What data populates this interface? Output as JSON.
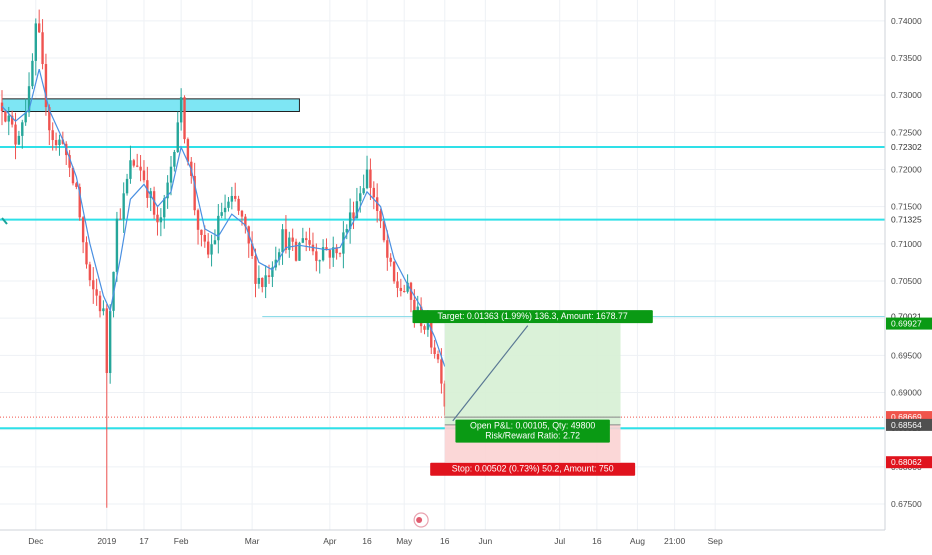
{
  "chart_data": {
    "type": "candlestick",
    "title": "",
    "ylim": [
      0.6715,
      0.7428
    ],
    "xlim_index": [
      0,
      276
    ],
    "x_ticks": [
      {
        "i": 10,
        "label": "Dec"
      },
      {
        "i": 31,
        "label": "2019"
      },
      {
        "i": 42,
        "label": "17"
      },
      {
        "i": 53,
        "label": "Feb"
      },
      {
        "i": 74,
        "label": "Mar"
      },
      {
        "i": 97,
        "label": "Apr"
      },
      {
        "i": 108,
        "label": "16"
      },
      {
        "i": 119,
        "label": "May"
      },
      {
        "i": 131,
        "label": "16"
      },
      {
        "i": 143,
        "label": "Jun"
      },
      {
        "i": 165,
        "label": "Jul"
      },
      {
        "i": 176,
        "label": "16"
      },
      {
        "i": 188,
        "label": "Aug"
      },
      {
        "i": 199,
        "label": "21:00"
      },
      {
        "i": 211,
        "label": "Sep"
      }
    ],
    "y_ticks": [
      "0.74000",
      "0.73500",
      "0.73000",
      "0.72500",
      "0.72000",
      "0.71500",
      "0.71000",
      "0.70500",
      "0.70000",
      "0.69500",
      "0.69000",
      "0.68500",
      "0.68000",
      "0.67500"
    ],
    "price_path": [
      [
        0,
        0.729
      ],
      [
        2,
        0.7265
      ],
      [
        4,
        0.724
      ],
      [
        6,
        0.727
      ],
      [
        8,
        0.73
      ],
      [
        10,
        0.7385
      ],
      [
        11,
        0.7372
      ],
      [
        12,
        0.733
      ],
      [
        14,
        0.726
      ],
      [
        16,
        0.723
      ],
      [
        18,
        0.7245
      ],
      [
        20,
        0.719
      ],
      [
        22,
        0.7175
      ],
      [
        24,
        0.71
      ],
      [
        26,
        0.704
      ],
      [
        28,
        0.703
      ],
      [
        30,
        0.7005
      ],
      [
        31,
        0.693
      ],
      [
        32,
        0.702
      ],
      [
        34,
        0.713
      ],
      [
        36,
        0.716
      ],
      [
        38,
        0.7205
      ],
      [
        40,
        0.721
      ],
      [
        42,
        0.719
      ],
      [
        44,
        0.716
      ],
      [
        46,
        0.712
      ],
      [
        48,
        0.715
      ],
      [
        50,
        0.7205
      ],
      [
        52,
        0.727
      ],
      [
        53,
        0.7285
      ],
      [
        55,
        0.722
      ],
      [
        57,
        0.715
      ],
      [
        59,
        0.71
      ],
      [
        61,
        0.7085
      ],
      [
        63,
        0.711
      ],
      [
        65,
        0.7145
      ],
      [
        67,
        0.715
      ],
      [
        69,
        0.7155
      ],
      [
        71,
        0.713
      ],
      [
        73,
        0.7095
      ],
      [
        75,
        0.706
      ],
      [
        77,
        0.7048
      ],
      [
        79,
        0.7065
      ],
      [
        81,
        0.709
      ],
      [
        83,
        0.711
      ],
      [
        85,
        0.71
      ],
      [
        87,
        0.708
      ],
      [
        89,
        0.7115
      ],
      [
        91,
        0.71
      ],
      [
        93,
        0.7085
      ],
      [
        95,
        0.7095
      ],
      [
        97,
        0.709
      ],
      [
        99,
        0.7085
      ],
      [
        101,
        0.711
      ],
      [
        103,
        0.7135
      ],
      [
        105,
        0.716
      ],
      [
        107,
        0.7185
      ],
      [
        108,
        0.7195
      ],
      [
        110,
        0.7165
      ],
      [
        112,
        0.712
      ],
      [
        114,
        0.708
      ],
      [
        116,
        0.7045
      ],
      [
        118,
        0.704
      ],
      [
        120,
        0.7035
      ],
      [
        122,
        0.701
      ],
      [
        124,
        0.7
      ],
      [
        126,
        0.698
      ],
      [
        128,
        0.696
      ],
      [
        130,
        0.6925
      ],
      [
        131,
        0.6887
      ]
    ],
    "ma_path": [
      [
        0,
        0.7285
      ],
      [
        4,
        0.7265
      ],
      [
        8,
        0.728
      ],
      [
        11,
        0.7335
      ],
      [
        14,
        0.728
      ],
      [
        18,
        0.724
      ],
      [
        22,
        0.719
      ],
      [
        26,
        0.71
      ],
      [
        30,
        0.703
      ],
      [
        32,
        0.701
      ],
      [
        35,
        0.708
      ],
      [
        38,
        0.716
      ],
      [
        42,
        0.718
      ],
      [
        46,
        0.715
      ],
      [
        50,
        0.717
      ],
      [
        53,
        0.723
      ],
      [
        56,
        0.72
      ],
      [
        60,
        0.712
      ],
      [
        64,
        0.711
      ],
      [
        68,
        0.714
      ],
      [
        72,
        0.7125
      ],
      [
        76,
        0.7075
      ],
      [
        80,
        0.7065
      ],
      [
        84,
        0.7095
      ],
      [
        88,
        0.7098
      ],
      [
        92,
        0.7095
      ],
      [
        96,
        0.7092
      ],
      [
        100,
        0.7095
      ],
      [
        104,
        0.713
      ],
      [
        108,
        0.717
      ],
      [
        112,
        0.715
      ],
      [
        116,
        0.708
      ],
      [
        120,
        0.7045
      ],
      [
        124,
        0.7015
      ],
      [
        128,
        0.6975
      ],
      [
        131,
        0.6935
      ]
    ],
    "spike_down": {
      "i": 31,
      "low": 0.6745
    },
    "zones": [
      {
        "kind": "resistance-box",
        "i0": 0,
        "i1": 88,
        "low": 0.7278,
        "high": 0.7295
      }
    ],
    "horizontal_lines": [
      {
        "price": 0.72302,
        "label": "0.72302",
        "color": "#2ee0e8"
      },
      {
        "price": 0.71325,
        "label": "0.71325",
        "color": "#2ee0e8"
      },
      {
        "price": 0.68519,
        "label": "0.68519",
        "color": "#2ee0e8"
      }
    ],
    "thin_line": {
      "price": 0.70021,
      "i0": 77,
      "label": "0.70021",
      "color": "#80d8e6"
    },
    "last_price_line": {
      "price": 0.68669,
      "label": "0.68669",
      "color": "#f0544b"
    },
    "trade": {
      "i0": 131,
      "i1": 183,
      "target_price": 0.69927,
      "entry_price": 0.68564,
      "stop_price": 0.68062,
      "current_price": 0.68669,
      "target_label": "Target: 0.01363 (1.99%) 136.3, Amount: 1678.77",
      "open_line1": "Open P&L: 0.00105, Qty: 49800",
      "open_line2": "Risk/Reward Ratio: 2.72",
      "stop_label": "Stop: 0.00502 (0.73%) 50.2, Amount: 750",
      "target_axis_label": "0.69927",
      "entry_axis_label": "0.68564",
      "stop_axis_label": "0.68062"
    },
    "grid": true,
    "colors": {
      "up": "#26a69a",
      "down": "#ef5350",
      "ma": "#4a90e2",
      "zone_fill": "#7ee6f4",
      "zone_stroke": "#222222",
      "profit_fill": "#d6f0d4",
      "loss_fill": "#fbd3d3",
      "target_badge": "#0a9a14",
      "stop_badge": "#e0131d",
      "entry_badge": "#4f4f4f"
    }
  }
}
